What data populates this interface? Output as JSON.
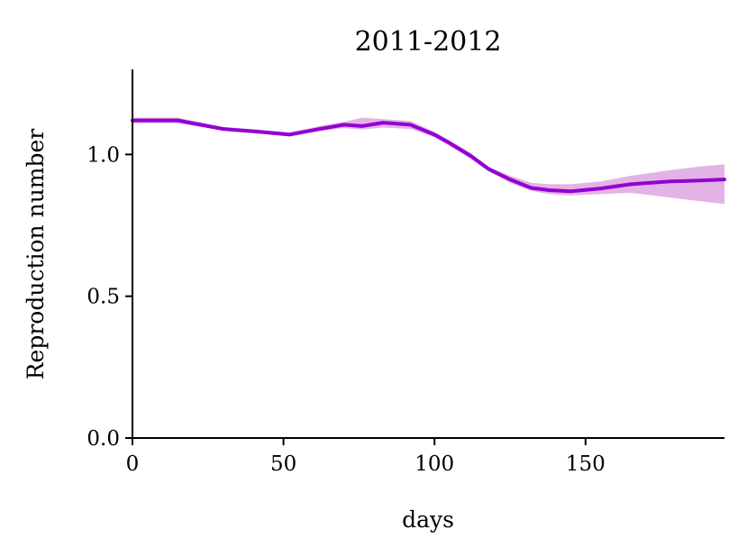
{
  "chart_data": {
    "type": "line",
    "title": "2011-2012",
    "xlabel": "days",
    "ylabel": "Reproduction number",
    "xlim": [
      0,
      196
    ],
    "ylim": [
      0,
      1.3
    ],
    "xticks": [
      0,
      50,
      100,
      150
    ],
    "xtick_labels": [
      "0",
      "50",
      "100",
      "150"
    ],
    "yticks": [
      0,
      0.5,
      1.0
    ],
    "ytick_labels": [
      "0.0",
      "0.5",
      "1.0"
    ],
    "grid": false,
    "colors": {
      "line": "#9400d3",
      "band": "#e4b3e6"
    },
    "series": [
      {
        "x": [
          0,
          15,
          30,
          42,
          52,
          62,
          70,
          76,
          83,
          92,
          100,
          105,
          112,
          118,
          125,
          132,
          138,
          145,
          155,
          165,
          178,
          188,
          196
        ],
        "y": [
          1.12,
          1.12,
          1.09,
          1.08,
          1.07,
          1.09,
          1.105,
          1.1,
          1.112,
          1.105,
          1.07,
          1.04,
          0.995,
          0.948,
          0.912,
          0.882,
          0.874,
          0.87,
          0.88,
          0.895,
          0.905,
          0.908,
          0.912
        ],
        "lower": [
          1.11,
          1.11,
          1.085,
          1.075,
          1.065,
          1.083,
          1.093,
          1.088,
          1.095,
          1.09,
          1.06,
          1.03,
          0.985,
          0.94,
          0.9,
          0.872,
          0.86,
          0.856,
          0.86,
          0.865,
          0.848,
          0.835,
          0.825
        ],
        "upper": [
          1.13,
          1.13,
          1.097,
          1.088,
          1.078,
          1.1,
          1.115,
          1.13,
          1.125,
          1.118,
          1.08,
          1.05,
          1.005,
          0.956,
          0.925,
          0.9,
          0.895,
          0.895,
          0.905,
          0.925,
          0.945,
          0.958,
          0.965
        ]
      }
    ]
  }
}
